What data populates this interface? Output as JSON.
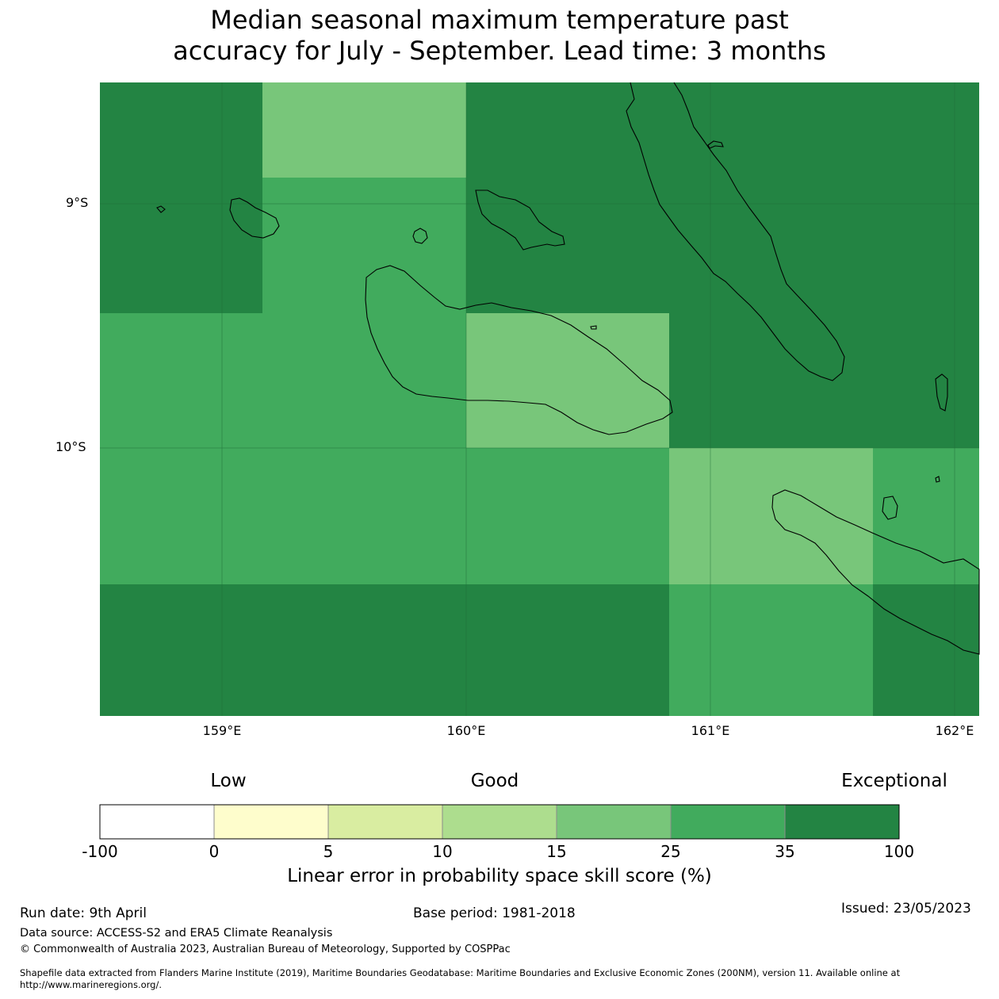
{
  "title": {
    "line1": "Median seasonal maximum temperature past",
    "line2": "accuracy for July - September. Lead time: 3 months"
  },
  "map": {
    "lat_labels": [
      "9°S",
      "10°S"
    ],
    "lon_labels": [
      "159°E",
      "160°E",
      "161°E",
      "162°E"
    ],
    "grid_cells": [
      {
        "row": 0,
        "col": 0,
        "class": "35-100"
      },
      {
        "row": 0,
        "col": 1,
        "class": "15-25"
      },
      {
        "row": 0,
        "col": 2,
        "class": "35-100"
      },
      {
        "row": 0,
        "col": 3,
        "class": "35-100"
      },
      {
        "row": 0,
        "col": 4,
        "class": "35-100"
      },
      {
        "row": 1,
        "col": 0,
        "class": "35-100"
      },
      {
        "row": 1,
        "col": 1,
        "class": "25-35"
      },
      {
        "row": 1,
        "col": 2,
        "class": "35-100"
      },
      {
        "row": 1,
        "col": 3,
        "class": "35-100"
      },
      {
        "row": 1,
        "col": 4,
        "class": "35-100"
      },
      {
        "row": 2,
        "col": 0,
        "class": "25-35"
      },
      {
        "row": 2,
        "col": 1,
        "class": "25-35"
      },
      {
        "row": 2,
        "col": 2,
        "class": "15-25"
      },
      {
        "row": 2,
        "col": 3,
        "class": "35-100"
      },
      {
        "row": 2,
        "col": 4,
        "class": "35-100"
      },
      {
        "row": 3,
        "col": 0,
        "class": "25-35"
      },
      {
        "row": 3,
        "col": 1,
        "class": "25-35"
      },
      {
        "row": 3,
        "col": 2,
        "class": "25-35"
      },
      {
        "row": 3,
        "col": 3,
        "class": "15-25"
      },
      {
        "row": 3,
        "col": 4,
        "class": "25-35"
      },
      {
        "row": 4,
        "col": 0,
        "class": "35-100"
      },
      {
        "row": 4,
        "col": 1,
        "class": "35-100"
      },
      {
        "row": 4,
        "col": 2,
        "class": "35-100"
      },
      {
        "row": 4,
        "col": 3,
        "class": "25-35"
      },
      {
        "row": 4,
        "col": 4,
        "class": "35-100"
      }
    ]
  },
  "legend": {
    "categories": [
      "Low",
      "Good",
      "Exceptional"
    ],
    "ticks": [
      "-100",
      "0",
      "5",
      "10",
      "15",
      "25",
      "35",
      "100"
    ],
    "colors": [
      "#ffffff",
      "#fefdcc",
      "#d9eda1",
      "#addd8e",
      "#78c67a",
      "#41ab5d",
      "#238443"
    ],
    "title": "Linear error in probability space skill score (%)"
  },
  "footer": {
    "run_date": "Run date: 9th April",
    "base_period": "Base period: 1981-2018",
    "issued": "Issued: 23/05/2023",
    "data_source": "Data source: ACCESS-S2 and ERA5 Climate Reanalysis",
    "copyright": "© Commonwealth of Australia 2023, Australian Bureau of Meteorology, Supported by COSPPac",
    "shapefile_1": "Shapefile data extracted from Flanders Marine Institute (2019), Maritime Boundaries Geodatabase: Maritime Boundaries and Exclusive Economic Zones (200NM), version 11. Available online at",
    "shapefile_2": "http://www.marineregions.org/."
  }
}
